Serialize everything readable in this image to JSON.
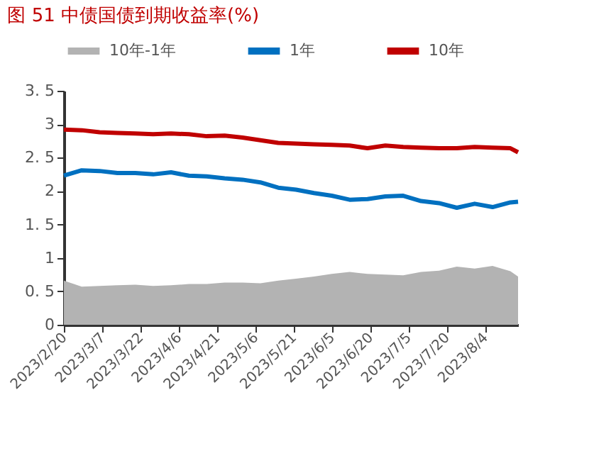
{
  "chart_data": {
    "type": "line",
    "title": "图 51  中债国债到期收益率(%)",
    "x": [
      "2023-02-20",
      "2023-02-27",
      "2023-03-06",
      "2023-03-13",
      "2023-03-20",
      "2023-03-27",
      "2023-04-03",
      "2023-04-10",
      "2023-04-17",
      "2023-04-24",
      "2023-05-01",
      "2023-05-08",
      "2023-05-15",
      "2023-05-22",
      "2023-05-29",
      "2023-06-05",
      "2023-06-12",
      "2023-06-19",
      "2023-06-26",
      "2023-07-03",
      "2023-07-10",
      "2023-07-17",
      "2023-07-24",
      "2023-07-31",
      "2023-08-07",
      "2023-08-14",
      "2023-08-17"
    ],
    "series": [
      {
        "name": "10年-1年",
        "type": "area",
        "color": "#b3b3b3",
        "values": [
          0.66,
          0.57,
          0.58,
          0.59,
          0.6,
          0.58,
          0.59,
          0.61,
          0.61,
          0.63,
          0.63,
          0.62,
          0.66,
          0.69,
          0.72,
          0.76,
          0.79,
          0.76,
          0.75,
          0.74,
          0.79,
          0.81,
          0.87,
          0.84,
          0.88,
          0.8,
          0.72
        ]
      },
      {
        "name": "1年",
        "color": "#0070c0",
        "values": [
          2.23,
          2.31,
          2.3,
          2.27,
          2.27,
          2.25,
          2.28,
          2.23,
          2.22,
          2.19,
          2.17,
          2.13,
          2.05,
          2.02,
          1.97,
          1.93,
          1.87,
          1.88,
          1.92,
          1.93,
          1.85,
          1.82,
          1.75,
          1.81,
          1.76,
          1.83,
          1.84
        ]
      },
      {
        "name": "10年",
        "color": "#c00000",
        "values": [
          2.92,
          2.91,
          2.88,
          2.87,
          2.86,
          2.85,
          2.86,
          2.85,
          2.82,
          2.83,
          2.8,
          2.76,
          2.72,
          2.71,
          2.7,
          2.69,
          2.68,
          2.64,
          2.68,
          2.66,
          2.65,
          2.64,
          2.64,
          2.66,
          2.65,
          2.64,
          2.58
        ]
      }
    ],
    "xlim": [
      "2023-02-20",
      "2023-08-17"
    ],
    "xticks": [
      {
        "value": "2023-02-20",
        "label": "2023/2/20"
      },
      {
        "value": "2023-03-07",
        "label": "2023/3/7"
      },
      {
        "value": "2023-03-22",
        "label": "2023/3/22"
      },
      {
        "value": "2023-04-06",
        "label": "2023/4/6"
      },
      {
        "value": "2023-04-21",
        "label": "2023/4/21"
      },
      {
        "value": "2023-05-06",
        "label": "2023/5/6"
      },
      {
        "value": "2023-05-21",
        "label": "2023/5/21"
      },
      {
        "value": "2023-06-05",
        "label": "2023/6/5"
      },
      {
        "value": "2023-06-20",
        "label": "2023/6/20"
      },
      {
        "value": "2023-07-05",
        "label": "2023/7/5"
      },
      {
        "value": "2023-07-20",
        "label": "2023/7/20"
      },
      {
        "value": "2023-08-04",
        "label": "2023/8/4"
      }
    ],
    "ylim": [
      0,
      3.5
    ],
    "yticks": [
      0,
      {
        "value": 0.5,
        "label": "0. 5"
      },
      1,
      {
        "value": 1.5,
        "label": "1. 5"
      },
      2,
      {
        "value": 2.5,
        "label": "2. 5"
      },
      3,
      {
        "value": 3.5,
        "label": "3. 5"
      }
    ],
    "legend": "top",
    "grid": false
  }
}
